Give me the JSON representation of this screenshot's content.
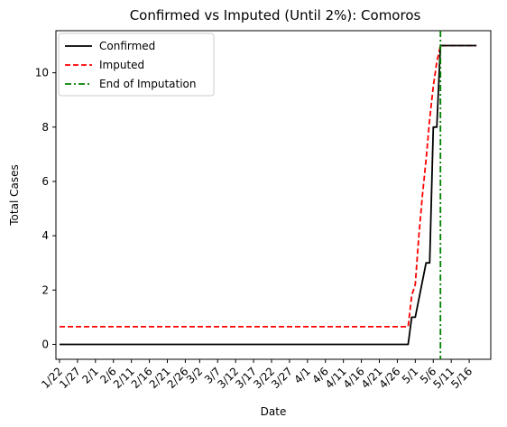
{
  "chart_data": {
    "type": "line",
    "title": "Confirmed vs Imputed (Until 2%): Comoros",
    "xlabel": "Date",
    "ylabel": "Total Cases",
    "x_tick_labels": [
      "1/22",
      "1/27",
      "2/1",
      "2/6",
      "2/11",
      "2/16",
      "2/21",
      "2/26",
      "3/2",
      "3/7",
      "3/12",
      "3/17",
      "3/22",
      "3/27",
      "4/1",
      "4/6",
      "4/11",
      "4/16",
      "4/21",
      "4/26",
      "5/1",
      "5/6",
      "5/11",
      "5/16"
    ],
    "y_ticks": [
      0,
      2,
      4,
      6,
      8,
      10
    ],
    "ylim": [
      -0.55,
      11.55
    ],
    "x_range_days": [
      -1,
      120
    ],
    "legend_position": "top-left",
    "grid": false,
    "colors": {
      "confirmed": "#000000",
      "imputed": "#ff0000",
      "end_line": "#008000"
    },
    "series": [
      {
        "name": "Confirmed",
        "style": "solid",
        "x": [
          "1/22",
          "4/29",
          "4/30",
          "5/1",
          "5/4",
          "5/5",
          "5/6",
          "5/7",
          "5/8",
          "5/18"
        ],
        "y": [
          0,
          0,
          1,
          1,
          3,
          3,
          8,
          8,
          11,
          11
        ]
      },
      {
        "name": "Imputed",
        "style": "dashed",
        "x": [
          "1/22",
          "4/29",
          "4/30",
          "5/1",
          "5/2",
          "5/3",
          "5/4",
          "5/5",
          "5/6",
          "5/7",
          "5/8",
          "5/18"
        ],
        "y": [
          0.65,
          0.65,
          1.8,
          2.2,
          4.0,
          5.5,
          6.8,
          8.3,
          9.5,
          10.4,
          11,
          11
        ]
      }
    ],
    "vertical_line": {
      "name": "End of Imputation",
      "style": "dash-dot",
      "x": "5/8"
    }
  }
}
